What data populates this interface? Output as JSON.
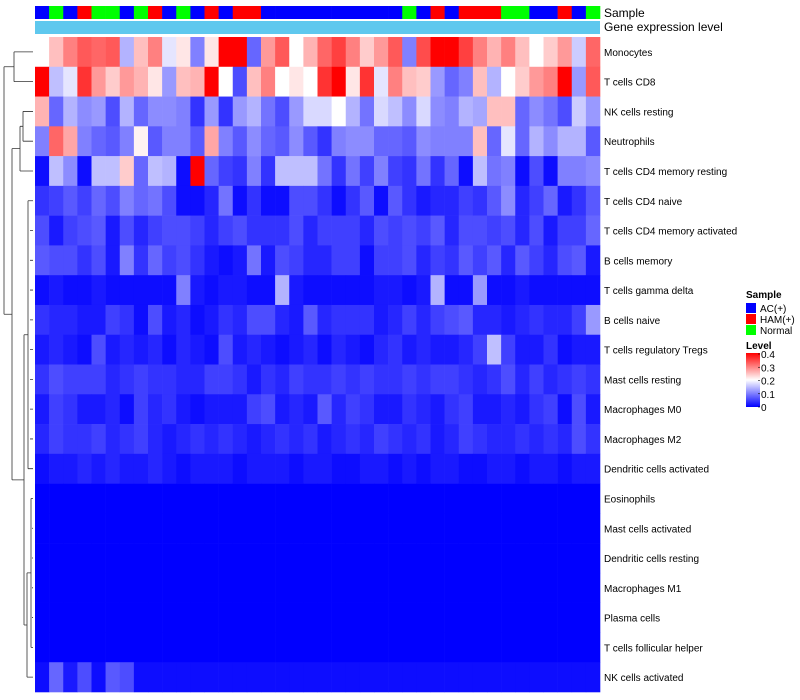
{
  "chart_data": {
    "type": "heatmap",
    "title": "",
    "annotation_tracks": {
      "sample_label": "Sample",
      "expression_label": "Gene expression level"
    },
    "columns": 40,
    "sample_annotation": [
      "AC(+)",
      "Normal",
      "AC(+)",
      "HAM(+)",
      "Normal",
      "Normal",
      "AC(+)",
      "Normal",
      "HAM(+)",
      "AC(+)",
      "Normal",
      "AC(+)",
      "HAM(+)",
      "AC(+)",
      "HAM(+)",
      "HAM(+)",
      "AC(+)",
      "AC(+)",
      "AC(+)",
      "AC(+)",
      "AC(+)",
      "AC(+)",
      "AC(+)",
      "AC(+)",
      "AC(+)",
      "AC(+)",
      "Normal",
      "AC(+)",
      "HAM(+)",
      "AC(+)",
      "HAM(+)",
      "HAM(+)",
      "HAM(+)",
      "Normal",
      "Normal",
      "AC(+)",
      "AC(+)",
      "HAM(+)",
      "AC(+)",
      "Normal"
    ],
    "rows": [
      {
        "name": "Monocytes",
        "values": [
          0.2,
          0.25,
          0.3,
          0.33,
          0.32,
          0.33,
          0.14,
          0.25,
          0.3,
          0.18,
          0.22,
          0.1,
          0.22,
          0.4,
          0.4,
          0.08,
          0.28,
          0.33,
          0.2,
          0.26,
          0.32,
          0.35,
          0.3,
          0.24,
          0.28,
          0.33,
          0.1,
          0.34,
          0.4,
          0.4,
          0.35,
          0.3,
          0.26,
          0.3,
          0.25,
          0.2,
          0.24,
          0.28,
          0.16,
          0.32
        ]
      },
      {
        "name": "T cells CD8",
        "values": [
          0.4,
          0.15,
          0.18,
          0.36,
          0.28,
          0.24,
          0.28,
          0.26,
          0.22,
          0.12,
          0.25,
          0.26,
          0.4,
          0.2,
          0.06,
          0.25,
          0.3,
          0.2,
          0.22,
          0.2,
          0.36,
          0.4,
          0.22,
          0.36,
          0.18,
          0.3,
          0.25,
          0.24,
          0.12,
          0.08,
          0.1,
          0.25,
          0.14,
          0.2,
          0.24,
          0.28,
          0.3,
          0.4,
          0.12,
          0.33
        ]
      },
      {
        "name": "NK cells resting",
        "values": [
          0.26,
          0.08,
          0.14,
          0.11,
          0.12,
          0.06,
          0.14,
          0.08,
          0.11,
          0.11,
          0.1,
          0.04,
          0.12,
          0.04,
          0.12,
          0.14,
          0.09,
          0.06,
          0.12,
          0.17,
          0.17,
          0.2,
          0.14,
          0.09,
          0.17,
          0.15,
          0.11,
          0.17,
          0.11,
          0.1,
          0.14,
          0.13,
          0.25,
          0.25,
          0.08,
          0.11,
          0.09,
          0.06,
          0.16,
          0.12
        ]
      },
      {
        "name": "Neutrophils",
        "values": [
          0.1,
          0.32,
          0.27,
          0.1,
          0.08,
          0.07,
          0.1,
          0.21,
          0.07,
          0.1,
          0.1,
          0.07,
          0.27,
          0.1,
          0.07,
          0.11,
          0.08,
          0.07,
          0.11,
          0.07,
          0.04,
          0.1,
          0.11,
          0.11,
          0.08,
          0.08,
          0.07,
          0.11,
          0.1,
          0.1,
          0.1,
          0.25,
          0.08,
          0.18,
          0.08,
          0.14,
          0.11,
          0.14,
          0.14,
          0.07
        ]
      },
      {
        "name": "T cells CD4 memory resting",
        "values": [
          0.01,
          0.15,
          0.11,
          0.01,
          0.15,
          0.15,
          0.24,
          0.08,
          0.15,
          0.14,
          0.01,
          0.4,
          0.08,
          0.05,
          0.04,
          0.1,
          0.04,
          0.15,
          0.15,
          0.15,
          0.09,
          0.04,
          0.09,
          0.05,
          0.1,
          0.05,
          0.04,
          0.09,
          0.04,
          0.08,
          0.01,
          0.15,
          0.09,
          0.1,
          0.01,
          0.06,
          0.01,
          0.1,
          0.1,
          0.11
        ]
      },
      {
        "name": "T cells CD4 naive",
        "values": [
          0.04,
          0.05,
          0.07,
          0.05,
          0.08,
          0.06,
          0.1,
          0.08,
          0.09,
          0.06,
          0.01,
          0.01,
          0.03,
          0.09,
          0.01,
          0.04,
          0.01,
          0.01,
          0.06,
          0.06,
          0.04,
          0.01,
          0.04,
          0.07,
          0.01,
          0.07,
          0.04,
          0.02,
          0.03,
          0.03,
          0.05,
          0.04,
          0.07,
          0.11,
          0.03,
          0.05,
          0.08,
          0.02,
          0.04,
          0.07
        ]
      },
      {
        "name": "T cells CD4 memory activated",
        "values": [
          0.06,
          0.02,
          0.05,
          0.06,
          0.07,
          0.02,
          0.06,
          0.03,
          0.05,
          0.06,
          0.06,
          0.05,
          0.03,
          0.05,
          0.06,
          0.04,
          0.04,
          0.04,
          0.06,
          0.03,
          0.05,
          0.05,
          0.05,
          0.03,
          0.06,
          0.05,
          0.06,
          0.05,
          0.07,
          0.03,
          0.06,
          0.06,
          0.05,
          0.06,
          0.03,
          0.06,
          0.02,
          0.05,
          0.05,
          0.08
        ]
      },
      {
        "name": "B cells memory",
        "values": [
          0.07,
          0.06,
          0.06,
          0.04,
          0.06,
          0.02,
          0.1,
          0.04,
          0.08,
          0.05,
          0.06,
          0.04,
          0.02,
          0.01,
          0.02,
          0.09,
          0.02,
          0.06,
          0.05,
          0.03,
          0.03,
          0.05,
          0.05,
          0.01,
          0.05,
          0.05,
          0.06,
          0.03,
          0.05,
          0.04,
          0.07,
          0.05,
          0.07,
          0.03,
          0.07,
          0.05,
          0.03,
          0.06,
          0.07,
          0.02
        ]
      },
      {
        "name": "T cells gamma delta",
        "values": [
          0.01,
          0.02,
          0.01,
          0.01,
          0.02,
          0.01,
          0.01,
          0.01,
          0.01,
          0.01,
          0.1,
          0.02,
          0.01,
          0.02,
          0.02,
          0.01,
          0.01,
          0.14,
          0.02,
          0.01,
          0.01,
          0.01,
          0.01,
          0.01,
          0.02,
          0.02,
          0.01,
          0.02,
          0.14,
          0.01,
          0.01,
          0.12,
          0.01,
          0.01,
          0.02,
          0.01,
          0.01,
          0.01,
          0.01,
          0.01
        ]
      },
      {
        "name": "B cells naive",
        "values": [
          0.04,
          0.03,
          0.03,
          0.02,
          0.02,
          0.05,
          0.04,
          0.01,
          0.06,
          0.02,
          0.03,
          0.01,
          0.02,
          0.04,
          0.03,
          0.06,
          0.06,
          0.03,
          0.02,
          0.07,
          0.03,
          0.04,
          0.04,
          0.04,
          0.02,
          0.03,
          0.05,
          0.03,
          0.05,
          0.06,
          0.07,
          0.03,
          0.03,
          0.02,
          0.03,
          0.04,
          0.03,
          0.03,
          0.05,
          0.12
        ]
      },
      {
        "name": "T cells regulatory  Tregs",
        "values": [
          0.02,
          0.03,
          0.02,
          0.01,
          0.06,
          0.02,
          0.03,
          0.02,
          0.03,
          0.01,
          0.03,
          0.02,
          0.01,
          0.06,
          0.02,
          0.03,
          0.02,
          0.01,
          0.02,
          0.03,
          0.01,
          0.03,
          0.02,
          0.01,
          0.03,
          0.04,
          0.02,
          0.03,
          0.02,
          0.02,
          0.03,
          0.05,
          0.15,
          0.05,
          0.02,
          0.02,
          0.04,
          0.01,
          0.02,
          0.02
        ]
      },
      {
        "name": "Mast cells resting",
        "values": [
          0.04,
          0.06,
          0.05,
          0.05,
          0.05,
          0.03,
          0.04,
          0.05,
          0.04,
          0.04,
          0.03,
          0.03,
          0.05,
          0.05,
          0.04,
          0.02,
          0.04,
          0.03,
          0.05,
          0.04,
          0.04,
          0.05,
          0.04,
          0.05,
          0.04,
          0.04,
          0.05,
          0.04,
          0.05,
          0.05,
          0.04,
          0.03,
          0.04,
          0.06,
          0.03,
          0.05,
          0.03,
          0.04,
          0.05,
          0.04
        ]
      },
      {
        "name": "Macrophages M0",
        "values": [
          0.02,
          0.05,
          0.04,
          0.02,
          0.02,
          0.03,
          0.01,
          0.05,
          0.03,
          0.04,
          0.02,
          0.01,
          0.02,
          0.02,
          0.02,
          0.05,
          0.06,
          0.02,
          0.03,
          0.02,
          0.07,
          0.03,
          0.05,
          0.04,
          0.02,
          0.02,
          0.04,
          0.03,
          0.02,
          0.04,
          0.05,
          0.02,
          0.02,
          0.03,
          0.02,
          0.04,
          0.05,
          0.01,
          0.06,
          0.02
        ]
      },
      {
        "name": "Macrophages M2",
        "values": [
          0.03,
          0.05,
          0.04,
          0.04,
          0.05,
          0.03,
          0.04,
          0.05,
          0.03,
          0.02,
          0.03,
          0.04,
          0.03,
          0.04,
          0.03,
          0.02,
          0.03,
          0.04,
          0.03,
          0.04,
          0.02,
          0.03,
          0.04,
          0.03,
          0.05,
          0.04,
          0.03,
          0.04,
          0.02,
          0.03,
          0.05,
          0.04,
          0.03,
          0.03,
          0.04,
          0.03,
          0.04,
          0.03,
          0.06,
          0.04
        ]
      },
      {
        "name": "Dendritic cells activated",
        "values": [
          0.01,
          0.02,
          0.02,
          0.03,
          0.02,
          0.03,
          0.02,
          0.02,
          0.03,
          0.02,
          0.01,
          0.02,
          0.02,
          0.02,
          0.01,
          0.02,
          0.02,
          0.02,
          0.01,
          0.02,
          0.02,
          0.01,
          0.01,
          0.02,
          0.02,
          0.01,
          0.02,
          0.01,
          0.02,
          0.02,
          0.01,
          0.01,
          0.02,
          0.02,
          0.01,
          0.02,
          0.02,
          0.01,
          0.02,
          0.02
        ]
      },
      {
        "name": "Eosinophils",
        "values": [
          0,
          0,
          0,
          0,
          0,
          0,
          0,
          0,
          0,
          0,
          0,
          0,
          0,
          0,
          0,
          0,
          0,
          0,
          0,
          0,
          0,
          0,
          0,
          0,
          0,
          0,
          0,
          0,
          0,
          0,
          0,
          0,
          0,
          0,
          0,
          0,
          0,
          0,
          0,
          0
        ]
      },
      {
        "name": "Mast cells activated",
        "values": [
          0,
          0,
          0,
          0,
          0,
          0,
          0,
          0,
          0,
          0,
          0,
          0,
          0,
          0,
          0,
          0,
          0,
          0,
          0,
          0,
          0,
          0,
          0,
          0,
          0,
          0,
          0,
          0,
          0,
          0,
          0,
          0,
          0,
          0,
          0,
          0,
          0,
          0,
          0,
          0
        ]
      },
      {
        "name": "Dendritic cells resting",
        "values": [
          0,
          0,
          0,
          0,
          0,
          0,
          0,
          0,
          0,
          0,
          0,
          0,
          0,
          0,
          0,
          0,
          0,
          0,
          0,
          0,
          0,
          0,
          0,
          0,
          0,
          0,
          0,
          0,
          0,
          0,
          0,
          0,
          0,
          0,
          0,
          0,
          0,
          0,
          0,
          0
        ]
      },
      {
        "name": "Macrophages M1",
        "values": [
          0,
          0,
          0,
          0,
          0,
          0,
          0,
          0,
          0,
          0,
          0,
          0,
          0,
          0,
          0,
          0,
          0,
          0,
          0,
          0,
          0,
          0,
          0,
          0,
          0,
          0,
          0,
          0,
          0,
          0,
          0,
          0,
          0,
          0,
          0,
          0,
          0,
          0,
          0,
          0
        ]
      },
      {
        "name": "Plasma cells",
        "values": [
          0,
          0,
          0,
          0,
          0,
          0,
          0,
          0,
          0,
          0,
          0,
          0,
          0,
          0,
          0,
          0,
          0,
          0,
          0,
          0,
          0,
          0,
          0,
          0,
          0,
          0,
          0,
          0,
          0,
          0,
          0,
          0,
          0,
          0,
          0,
          0,
          0,
          0,
          0,
          0
        ]
      },
      {
        "name": "T cells follicular helper",
        "values": [
          0,
          0,
          0,
          0,
          0,
          0,
          0,
          0,
          0,
          0,
          0,
          0,
          0,
          0,
          0,
          0,
          0,
          0,
          0,
          0,
          0,
          0,
          0,
          0,
          0,
          0,
          0,
          0,
          0,
          0,
          0,
          0,
          0,
          0,
          0,
          0,
          0,
          0,
          0,
          0
        ]
      },
      {
        "name": "NK cells activated",
        "values": [
          0.01,
          0.08,
          0.02,
          0.06,
          0.01,
          0.07,
          0.06,
          0.01,
          0.01,
          0.01,
          0.01,
          0.01,
          0.01,
          0.01,
          0.01,
          0.01,
          0.01,
          0.01,
          0.01,
          0.01,
          0.01,
          0.01,
          0.01,
          0.01,
          0.01,
          0.01,
          0.01,
          0.01,
          0.01,
          0.01,
          0.01,
          0.01,
          0.01,
          0.01,
          0.01,
          0.01,
          0.01,
          0.01,
          0.01,
          0.01
        ]
      }
    ],
    "legend_sample": {
      "title": "Sample",
      "entries": [
        {
          "label": "AC(+)",
          "color": "#0000ff"
        },
        {
          "label": "HAM(+)",
          "color": "#ff0000"
        },
        {
          "label": "Normal",
          "color": "#00ff00"
        }
      ]
    },
    "legend_level": {
      "title": "Level",
      "min": 0,
      "max": 0.4,
      "ticks": [
        "0.4",
        "0.3",
        "0.2",
        "0.1",
        "0"
      ],
      "colors": {
        "low": "#0000ff",
        "mid": "#ffffff",
        "high": "#ff0000"
      },
      "mid_value": 0.2
    },
    "expression_track_color": "#5fc8ee"
  }
}
